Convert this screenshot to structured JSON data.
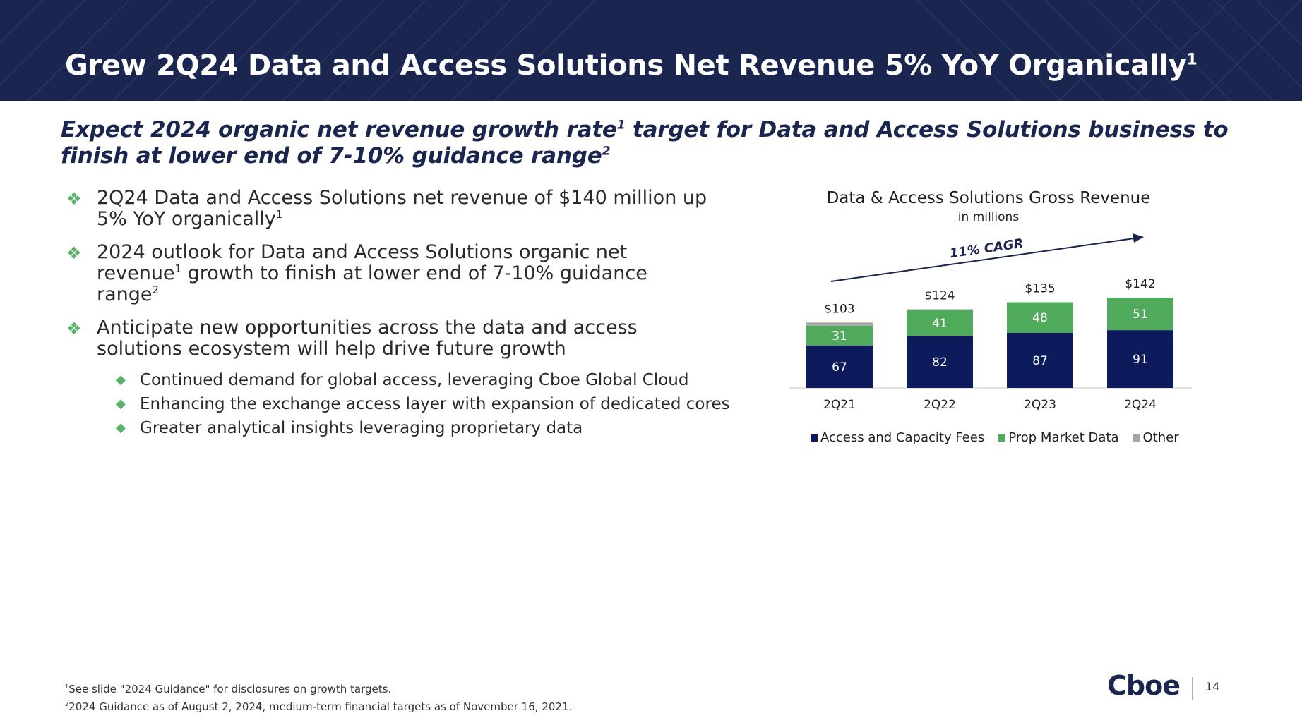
{
  "header": {
    "title": "Grew 2Q24 Data and Access Solutions Net Revenue 5% YoY Organically",
    "title_sup": "1"
  },
  "subtitle": {
    "part1": "Expect 2024 organic net revenue growth rate",
    "sup1": "1",
    "part2": " target for Data and Access Solutions business to finish at lower end of 7-10% guidance range",
    "sup2": "2"
  },
  "bullets": [
    {
      "text": "2Q24 Data and Access Solutions net revenue of $140 million up 5% YoY organically",
      "sup": "1"
    },
    {
      "part1": "2024 outlook for Data and Access Solutions organic net revenue",
      "sup1": "1",
      "part2": " growth to finish at lower end of 7-10% guidance range",
      "sup2": "2"
    },
    {
      "text": "Anticipate new opportunities across the data and access solutions ecosystem will help drive future growth"
    }
  ],
  "sub_bullets": [
    "Continued demand for global access, leveraging Cboe Global Cloud",
    "Enhancing the exchange access layer with expansion of dedicated cores",
    "Greater analytical insights leveraging proprietary data"
  ],
  "chart_data": {
    "type": "bar",
    "stacked": true,
    "title": "Data & Access Solutions Gross Revenue",
    "subtitle": "in millions",
    "categories": [
      "2Q21",
      "2Q22",
      "2Q23",
      "2Q24"
    ],
    "series": [
      {
        "name": "Access and Capacity Fees",
        "values": [
          67,
          82,
          87,
          91
        ],
        "color": "#0d1b5c"
      },
      {
        "name": "Prop Market Data",
        "values": [
          31,
          41,
          48,
          51
        ],
        "color": "#4faa5c"
      },
      {
        "name": "Other",
        "values": [
          5,
          1,
          0,
          0
        ],
        "color": "#a6a6a6"
      }
    ],
    "totals": [
      "$103",
      "$124",
      "$135",
      "$142"
    ],
    "annotation": "11% CAGR",
    "legend_position": "bottom",
    "grid": false
  },
  "footnotes": [
    {
      "sup": "1",
      "text": "See slide \"2024 Guidance\" for disclosures on growth targets."
    },
    {
      "sup": "2",
      "text": "2024 Guidance as of August 2, 2024, medium-term financial targets as of November 16, 2021."
    }
  ],
  "logo": {
    "text": "Cboe"
  },
  "page_number": "14"
}
